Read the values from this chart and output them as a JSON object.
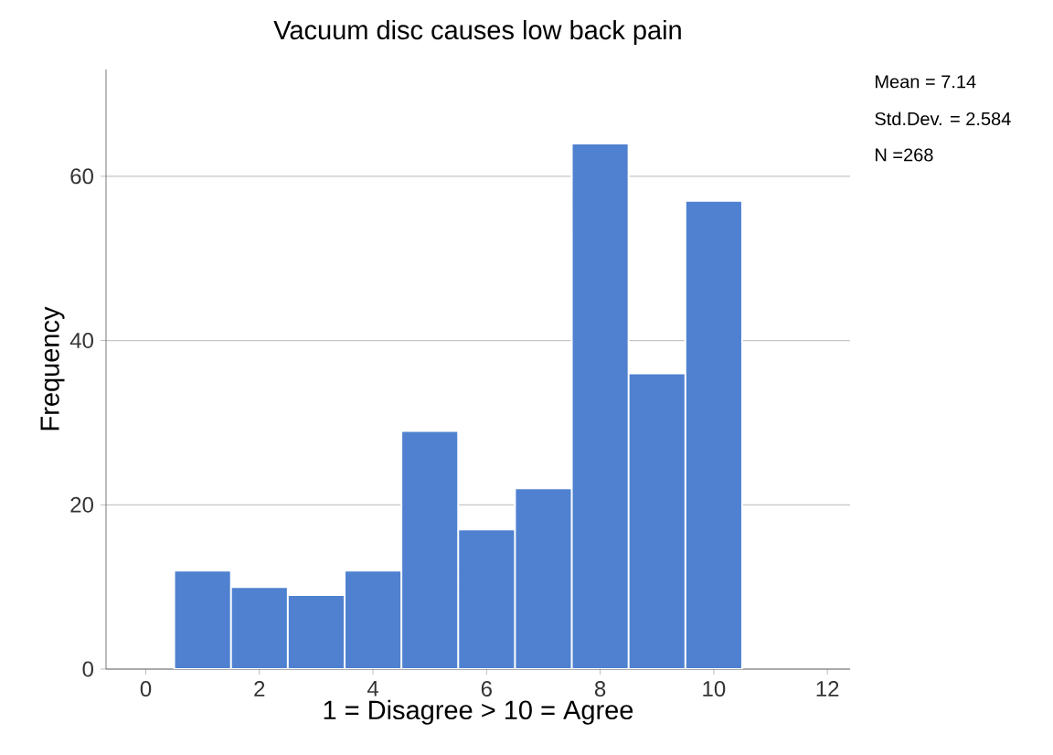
{
  "chart_data": {
    "type": "histogram",
    "title": "Vacuum disc causes low back pain",
    "xlabel": "1 = Disagree > 10 = Agree",
    "ylabel": "Frequency",
    "bins": [
      0.5,
      1.5,
      2.5,
      3.5,
      4.5,
      5.5,
      6.5,
      7.5,
      8.5,
      9.5,
      10.5
    ],
    "values": [
      12,
      10,
      9,
      12,
      29,
      17,
      22,
      64,
      36,
      57
    ],
    "color": "#4f81d0",
    "xlim": [
      -0.7,
      12.4
    ],
    "ylim": [
      0,
      73
    ],
    "xticks": [
      0,
      2,
      4,
      6,
      8,
      10,
      12
    ],
    "yticks": [
      0,
      20,
      40,
      60
    ],
    "grid": "y",
    "annotations": [
      "Mean = 7.14",
      "Std.Dev. = 2.584",
      "N =268"
    ]
  }
}
